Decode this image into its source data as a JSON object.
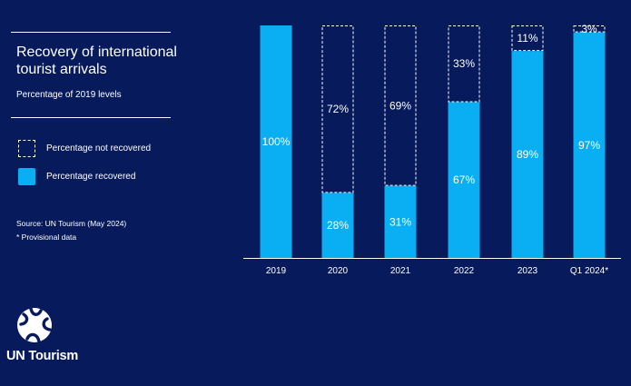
{
  "title": "Recovery of international\ntourist arrivals",
  "subtitle": "Percentage of 2019 levels",
  "legend": {
    "not_recovered": "Percentage not recovered",
    "recovered": "Percentage recovered"
  },
  "source": "Source: UN Tourism (May 2024)",
  "note": "* Provisional data",
  "logo_text": "UN Tourism",
  "colors": {
    "background": "#071a5c",
    "recovered": "#09aff2",
    "text": "#ffffff"
  },
  "chart_data": {
    "type": "bar",
    "stacked": true,
    "categories": [
      "2019",
      "2020",
      "2021",
      "2022",
      "2023",
      "Q1 2024*"
    ],
    "series": [
      {
        "name": "Percentage recovered",
        "values": [
          100,
          28,
          31,
          67,
          89,
          97
        ],
        "labels": [
          "100%",
          "28%",
          "31%",
          "67%",
          "89%",
          "97%"
        ]
      },
      {
        "name": "Percentage not recovered",
        "values": [
          0,
          72,
          69,
          33,
          11,
          3
        ],
        "labels": [
          "",
          "72%",
          "69%",
          "33%",
          "11%",
          "3%"
        ]
      }
    ],
    "ylim": [
      0,
      100
    ]
  }
}
